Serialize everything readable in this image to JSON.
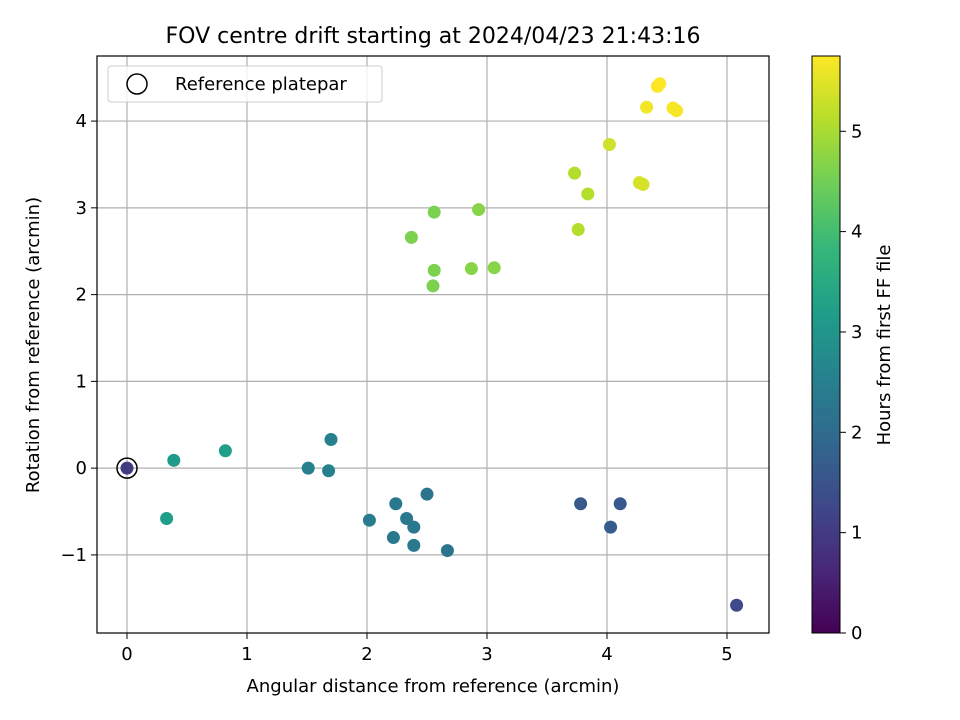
{
  "chart_data": {
    "type": "scatter",
    "title": "FOV centre drift starting at 2024/04/23 21:43:16",
    "xlabel": "Angular distance from reference (arcmin)",
    "ylabel": "Rotation from reference (arcmin)",
    "xlim": [
      -0.25,
      5.35
    ],
    "ylim": [
      -1.9,
      4.75
    ],
    "xticks": [
      0,
      1,
      2,
      3,
      4,
      5
    ],
    "xtick_labels": [
      "0",
      "1",
      "2",
      "3",
      "4",
      "5"
    ],
    "yticks": [
      -1,
      0,
      1,
      2,
      3,
      4
    ],
    "ytick_labels": [
      "−1",
      "0",
      "1",
      "2",
      "3",
      "4"
    ],
    "grid": true,
    "legend": {
      "placement": "top-left",
      "entries": [
        "Reference platepar"
      ]
    },
    "reference_point": {
      "x": 0,
      "y": 0,
      "label": "Reference platepar"
    },
    "colorbar": {
      "label": "Hours from first FF file",
      "range": [
        0,
        5.75
      ],
      "ticks": [
        0,
        1,
        2,
        3,
        4,
        5
      ],
      "tick_labels": [
        "0",
        "1",
        "2",
        "3",
        "4",
        "5"
      ],
      "colormap": "viridis",
      "colors": [
        "#440154",
        "#482878",
        "#3e4989",
        "#31688e",
        "#26828e",
        "#1f9e89",
        "#35b779",
        "#6ece58",
        "#b5de2b",
        "#fde725"
      ]
    },
    "points": [
      {
        "x": 0.0,
        "y": 0.0,
        "t": 1.0
      },
      {
        "x": 5.08,
        "y": -1.58,
        "t": 1.3
      },
      {
        "x": 3.78,
        "y": -0.41,
        "t": 1.6
      },
      {
        "x": 4.11,
        "y": -0.41,
        "t": 1.6
      },
      {
        "x": 4.03,
        "y": -0.68,
        "t": 1.7
      },
      {
        "x": 2.5,
        "y": -0.3,
        "t": 2.2
      },
      {
        "x": 2.67,
        "y": -0.95,
        "t": 2.2
      },
      {
        "x": 2.24,
        "y": -0.41,
        "t": 2.3
      },
      {
        "x": 2.33,
        "y": -0.58,
        "t": 2.3
      },
      {
        "x": 2.39,
        "y": -0.68,
        "t": 2.3
      },
      {
        "x": 2.22,
        "y": -0.8,
        "t": 2.3
      },
      {
        "x": 2.39,
        "y": -0.89,
        "t": 2.3
      },
      {
        "x": 2.02,
        "y": -0.6,
        "t": 2.4
      },
      {
        "x": 1.51,
        "y": 0.0,
        "t": 2.5
      },
      {
        "x": 1.68,
        "y": -0.03,
        "t": 2.5
      },
      {
        "x": 1.7,
        "y": 0.33,
        "t": 2.5
      },
      {
        "x": 0.39,
        "y": 0.09,
        "t": 3.1
      },
      {
        "x": 0.82,
        "y": 0.2,
        "t": 3.2
      },
      {
        "x": 0.33,
        "y": -0.58,
        "t": 3.2
      },
      {
        "x": 2.37,
        "y": 2.66,
        "t": 4.6
      },
      {
        "x": 2.56,
        "y": 2.95,
        "t": 4.6
      },
      {
        "x": 2.93,
        "y": 2.98,
        "t": 4.7
      },
      {
        "x": 2.56,
        "y": 2.28,
        "t": 4.6
      },
      {
        "x": 2.87,
        "y": 2.3,
        "t": 4.7
      },
      {
        "x": 3.06,
        "y": 2.31,
        "t": 4.7
      },
      {
        "x": 2.55,
        "y": 2.1,
        "t": 4.6
      },
      {
        "x": 3.73,
        "y": 3.4,
        "t": 5.1
      },
      {
        "x": 3.84,
        "y": 3.16,
        "t": 5.1
      },
      {
        "x": 3.76,
        "y": 2.75,
        "t": 5.1
      },
      {
        "x": 4.02,
        "y": 3.73,
        "t": 5.35
      },
      {
        "x": 4.27,
        "y": 3.29,
        "t": 5.4
      },
      {
        "x": 4.3,
        "y": 3.27,
        "t": 5.4
      },
      {
        "x": 4.33,
        "y": 4.16,
        "t": 5.65
      },
      {
        "x": 4.42,
        "y": 4.4,
        "t": 5.75
      },
      {
        "x": 4.44,
        "y": 4.43,
        "t": 5.75
      },
      {
        "x": 4.55,
        "y": 4.15,
        "t": 5.7
      },
      {
        "x": 4.58,
        "y": 4.12,
        "t": 5.7
      }
    ]
  }
}
